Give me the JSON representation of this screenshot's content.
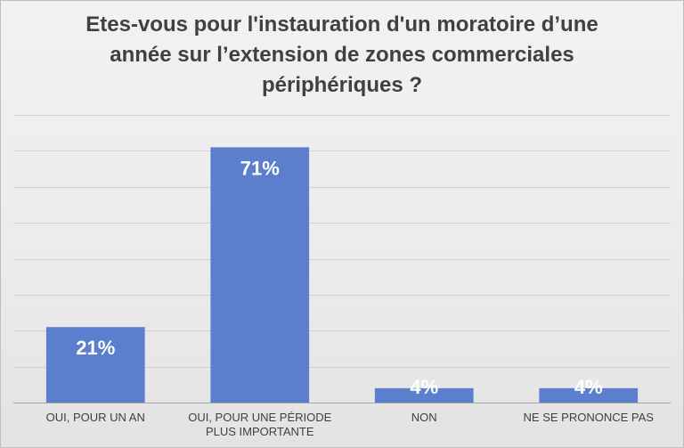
{
  "chart_data": {
    "type": "bar",
    "title_lines": [
      "Etes-vous pour l'instauration d'un moratoire d’une",
      "année sur l’extension de zones commerciales",
      "périphériques ?"
    ],
    "categories": [
      [
        "OUI, POUR UN AN"
      ],
      [
        "OUI, POUR UNE PÉRIODE",
        "PLUS IMPORTANTE"
      ],
      [
        "NON"
      ],
      [
        "NE SE PRONONCE PAS"
      ]
    ],
    "values": [
      21,
      71,
      4,
      4
    ],
    "data_labels": [
      "21%",
      "71%",
      "4%",
      "4%"
    ],
    "ylim": [
      0,
      80
    ],
    "grid": true,
    "colors": {
      "bar": "#5b7fcc",
      "label": "#ffffff"
    }
  }
}
